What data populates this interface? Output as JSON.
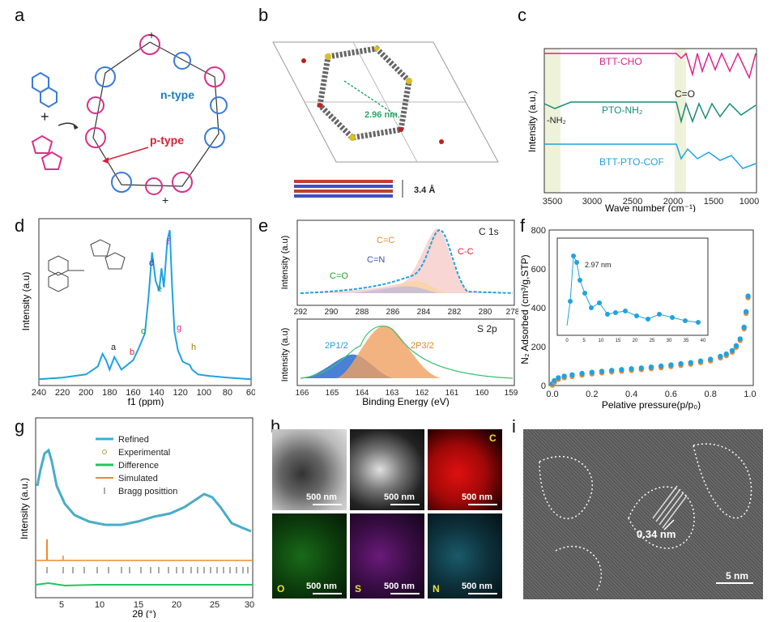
{
  "panel_labels": {
    "a": "a",
    "b": "b",
    "c": "c",
    "d": "d",
    "e": "e",
    "f": "f",
    "g": "g",
    "h": "h",
    "i": "i"
  },
  "panel_a": {
    "ntype": "n-type",
    "ptype": "p-type",
    "plus": "+"
  },
  "panel_b": {
    "pore": "2.96 nm",
    "stack": "3.4 Å"
  },
  "colors": {
    "blue": "#1fa3e0",
    "pink": "#e0208c",
    "teal": "#1a8a7a",
    "orange": "#f08a2a",
    "green": "#22c55e",
    "navy": "#1a4aa0"
  },
  "chart_data": [
    {
      "panel": "c",
      "type": "line",
      "xlabel": "Wave number (cm⁻¹)",
      "ylabel": "Intensity (a.u.)",
      "xticks": [
        "3500",
        "3000",
        "2500",
        "2000",
        "1500",
        "1000"
      ],
      "series": [
        {
          "name": "BTT-CHO"
        },
        {
          "name": "PTO-NH₂"
        },
        {
          "name": "BTT-PTO-COF"
        }
      ],
      "annotations": [
        "C=O",
        "-NH₂"
      ]
    },
    {
      "panel": "d",
      "type": "line",
      "xlabel": "f1 (ppm)",
      "ylabel": "Intensity (a.u)",
      "xticks": [
        "240",
        "220",
        "200",
        "180",
        "160",
        "140",
        "120",
        "100",
        "80",
        "60"
      ],
      "x": [
        240,
        220,
        200,
        190,
        186,
        183,
        180,
        176,
        170,
        160,
        155,
        150,
        147,
        144,
        141,
        138,
        136,
        134,
        131,
        129,
        127,
        125,
        122,
        118,
        112,
        110,
        105,
        95,
        80,
        60
      ],
      "y": [
        0.04,
        0.05,
        0.07,
        0.12,
        0.2,
        0.16,
        0.1,
        0.18,
        0.1,
        0.16,
        0.24,
        0.33,
        0.56,
        0.84,
        0.66,
        0.6,
        0.74,
        0.62,
        0.92,
        0.98,
        0.62,
        0.34,
        0.22,
        0.15,
        0.13,
        0.1,
        0.07,
        0.06,
        0.05,
        0.04
      ],
      "peak_labels": [
        "a",
        "b",
        "c",
        "d",
        "e",
        "f",
        "g",
        "h"
      ]
    },
    {
      "panel": "e-top",
      "type": "line",
      "title": "C 1s",
      "ylabel": "Intensity (a.u)",
      "xticks": [
        "292",
        "290",
        "288",
        "286",
        "284",
        "282",
        "280",
        "278"
      ],
      "components": [
        "C=O",
        "C=N",
        "C=C",
        "C-C"
      ]
    },
    {
      "panel": "e-bottom",
      "type": "area",
      "title": "S 2p",
      "xlabel": "Binding Energy (eV)",
      "ylabel": "Intensity (a.u)",
      "xticks": [
        "166",
        "165",
        "164",
        "163",
        "162",
        "161",
        "160",
        "159"
      ],
      "components": [
        "2P1/2",
        "2P3/2"
      ]
    },
    {
      "panel": "f",
      "type": "scatter",
      "xlabel": "Pelative pressure(p/p₀)",
      "ylabel": "N₂ Adsorbed (cm³/g,STP)",
      "xticks": [
        "0.0",
        "0.2",
        "0.4",
        "0.6",
        "0.8",
        "1.0"
      ],
      "yticks": [
        "0",
        "200",
        "400",
        "600",
        "800"
      ],
      "ylim": [
        0,
        800
      ],
      "x": [
        0.0,
        0.01,
        0.03,
        0.06,
        0.1,
        0.15,
        0.2,
        0.25,
        0.3,
        0.35,
        0.4,
        0.45,
        0.5,
        0.55,
        0.6,
        0.65,
        0.7,
        0.75,
        0.8,
        0.85,
        0.88,
        0.91,
        0.93,
        0.95,
        0.97,
        0.98,
        0.99
      ],
      "y": [
        10,
        25,
        40,
        48,
        55,
        62,
        68,
        73,
        78,
        82,
        86,
        90,
        95,
        100,
        106,
        112,
        118,
        126,
        135,
        150,
        162,
        180,
        205,
        240,
        300,
        380,
        460
      ],
      "inset": {
        "label": "2.97 nm",
        "xticks": [
          "0",
          "5",
          "10",
          "15",
          "20",
          "25",
          "30",
          "35",
          "40"
        ]
      }
    },
    {
      "panel": "g",
      "type": "line",
      "xlabel": "2θ (°)",
      "ylabel": "Intensity (a.u.)",
      "xticks": [
        "5",
        "10",
        "15",
        "20",
        "25",
        "30"
      ],
      "legend": [
        "Refined",
        "Experimental",
        "Difference",
        "Simulated",
        "Bragg posittion"
      ]
    }
  ],
  "panel_h": {
    "scale": "500 nm",
    "elements": [
      "C",
      "O",
      "S",
      "N"
    ]
  },
  "panel_i": {
    "lattice": "0.34 nm",
    "scale": "5 nm"
  }
}
